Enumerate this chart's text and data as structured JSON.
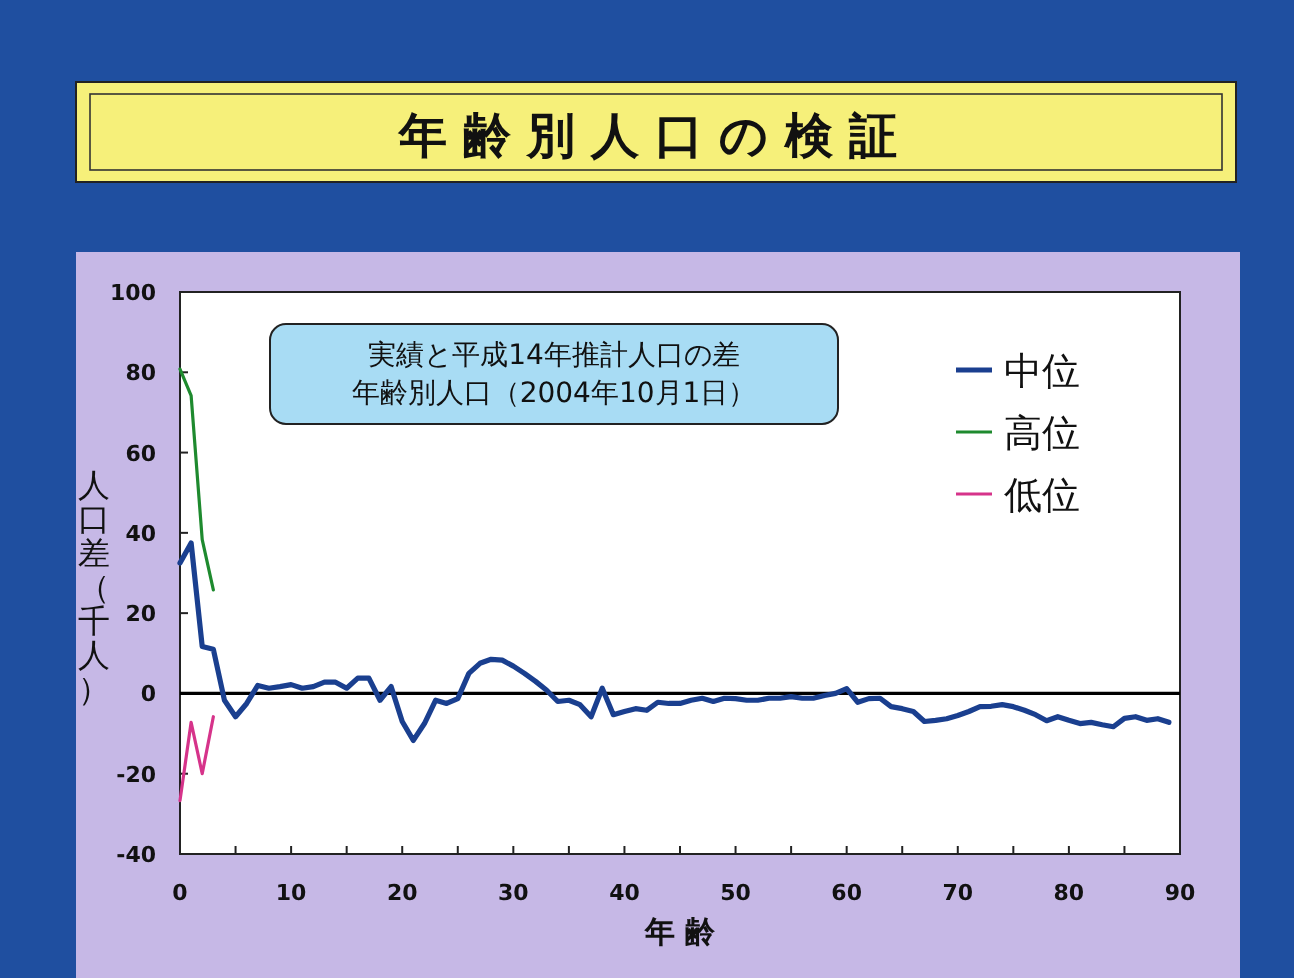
{
  "chart_data": {
    "type": "line",
    "title": "年齢別人口の検証",
    "xlabel": "年 齢",
    "ylabel": "人口差（千人）",
    "annotations": [
      "実績と平成14年推計人口の差",
      "年齢別人口（2004年10月1日）"
    ],
    "xlim": [
      0,
      90
    ],
    "ylim": [
      -40,
      100
    ],
    "xticks": [
      0,
      {
        "value": 5,
        "label": null
      },
      10,
      {
        "value": 15,
        "label": null
      },
      20,
      {
        "value": 25,
        "label": null
      },
      30,
      {
        "value": 35,
        "label": null
      },
      40,
      {
        "value": 45,
        "label": null
      },
      50,
      {
        "value": 55,
        "label": null
      },
      60,
      {
        "value": 65,
        "label": null
      },
      70,
      {
        "value": 75,
        "label": null
      },
      80,
      {
        "value": 85,
        "label": null
      },
      90
    ],
    "yticks": [
      -40,
      -20,
      0,
      20,
      40,
      60,
      80,
      100
    ],
    "grid": false,
    "legend": "top right",
    "ref_lines": [
      {
        "axis": "y",
        "value": 0,
        "color": "#000000"
      }
    ],
    "series": [
      {
        "name": "中位",
        "color": "#1a3f8f",
        "x": [
          0,
          1,
          2,
          3,
          4,
          5,
          6,
          7,
          8,
          9,
          10,
          11,
          12,
          13,
          14,
          15,
          16,
          17,
          18,
          19,
          20,
          21,
          22,
          23,
          24,
          25,
          26,
          27,
          28,
          29,
          30,
          31,
          32,
          33,
          34,
          35,
          36,
          37,
          38,
          39,
          40,
          41,
          42,
          43,
          44,
          45,
          46,
          47,
          48,
          49,
          50,
          51,
          52,
          53,
          54,
          55,
          56,
          57,
          58,
          59,
          60,
          61,
          62,
          63,
          64,
          65,
          66,
          67,
          68,
          69,
          70,
          71,
          72,
          73,
          74,
          75,
          76,
          77,
          78,
          79,
          80,
          81,
          82,
          83,
          84,
          85,
          86,
          87,
          88,
          89
        ],
        "values": [
          32.5,
          37.5,
          11.7,
          11,
          -1.7,
          -5.8,
          -2.5,
          2,
          1.3,
          1.7,
          2.2,
          1.3,
          1.7,
          2.8,
          2.8,
          1.3,
          3.8,
          3.8,
          -1.7,
          1.7,
          -7,
          -11.7,
          -7.5,
          -1.7,
          -2.5,
          -1.3,
          5,
          7.5,
          8.5,
          8.3,
          6.8,
          5,
          3,
          0.8,
          -2,
          -1.7,
          -2.8,
          -5.8,
          1.3,
          -5.3,
          -4.5,
          -3.8,
          -4.2,
          -2.2,
          -2.5,
          -2.5,
          -1.7,
          -1.2,
          -2,
          -1.2,
          -1.3,
          -1.7,
          -1.7,
          -1.2,
          -1.2,
          -0.8,
          -1.2,
          -1.2,
          -0.5,
          0,
          1.2,
          -2.2,
          -1.3,
          -1.2,
          -3.3,
          -3.8,
          -4.5,
          -7,
          -6.7,
          -6.3,
          -5.5,
          -4.5,
          -3.3,
          -3.2,
          -2.8,
          -3.3,
          -4.2,
          -5.3,
          -6.8,
          -5.8,
          -6.7,
          -7.5,
          -7.2,
          -7.8,
          -8.3,
          -6.2,
          -5.8,
          -6.7,
          -6.3,
          -7.2
        ]
      },
      {
        "name": "高位",
        "color": "#1e8a2e",
        "x": [
          0,
          1,
          2,
          3
        ],
        "values": [
          80.8,
          74.2,
          38.3,
          25.8
        ]
      },
      {
        "name": "低位",
        "color": "#d6338a",
        "x": [
          0,
          1,
          2,
          3
        ],
        "values": [
          -26.7,
          -7.2,
          -20,
          -5.8
        ]
      }
    ]
  }
}
